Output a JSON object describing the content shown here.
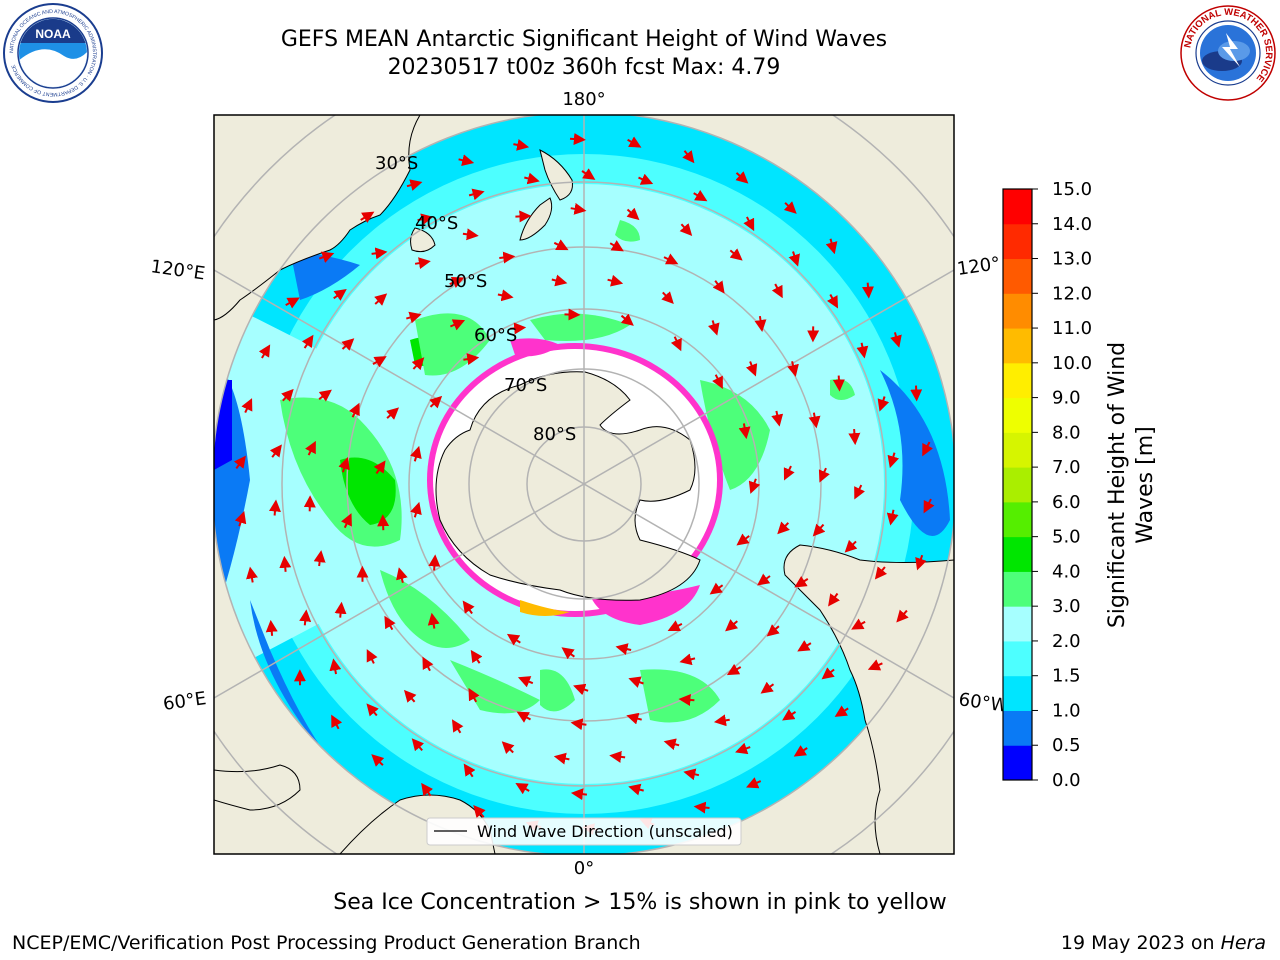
{
  "header": {
    "title_line1": "GEFS MEAN Antarctic Significant Height of Wind Waves",
    "title_line2": "20230517 t00z 360h fcst   Max: 4.79"
  },
  "logos": {
    "noaa_text": "NOAA",
    "noaa_ring_text": "NATIONAL OCEANIC AND ATMOSPHERIC ADMINISTRATION · U.S. DEPARTMENT OF COMMERCE",
    "nws_ring_text": "NATIONAL WEATHER SERVICE"
  },
  "map": {
    "longitude_labels": {
      "top": "180°",
      "bottom": "0°",
      "upper_left": "120°E",
      "lower_left": "60°E",
      "upper_right": "120°",
      "lower_right": "60°W"
    },
    "latitude_labels": [
      "30°S",
      "40°S",
      "50°S",
      "60°S",
      "70°S",
      "80°S"
    ],
    "legend": "Wind Wave Direction (unscaled)"
  },
  "colorbar": {
    "label_line1": "Significant Height of Wind",
    "label_line2": "Waves [m]",
    "levels": [
      0.0,
      0.5,
      1.0,
      1.5,
      2.0,
      3.0,
      4.0,
      5.0,
      6.0,
      7.0,
      8.0,
      9.0,
      10.0,
      11.0,
      12.0,
      13.0,
      14.0,
      15.0
    ],
    "tick_labels": [
      "0.0",
      "0.5",
      "1.0",
      "1.5",
      "2.0",
      "3.0",
      "4.0",
      "5.0",
      "6.0",
      "7.0",
      "8.0",
      "9.0",
      "10.0",
      "11.0",
      "12.0",
      "13.0",
      "14.0",
      "15.0"
    ],
    "colors": [
      "#0000ff",
      "#0a7af5",
      "#00e5ff",
      "#4dffff",
      "#a6ffff",
      "#4dff7a",
      "#00e600",
      "#55ee00",
      "#aaee00",
      "#d6f500",
      "#eeff00",
      "#ffee00",
      "#ffbb00",
      "#ff8c00",
      "#ff5a00",
      "#ff2a00",
      "#ff0000"
    ]
  },
  "colors": {
    "land": "#eeecdc",
    "ice": "#ffffff",
    "ice_edge": "#ff33cc",
    "arrow": "#e60000",
    "grid": "#b3b3b3"
  },
  "footer": {
    "sea_ice_note": "Sea Ice Concentration > 15% is shown in pink to yellow",
    "left": "NCEP/EMC/Verification Post Processing Product Generation Branch",
    "right_date": "19 May 2023 on ",
    "right_host": "Hera"
  }
}
